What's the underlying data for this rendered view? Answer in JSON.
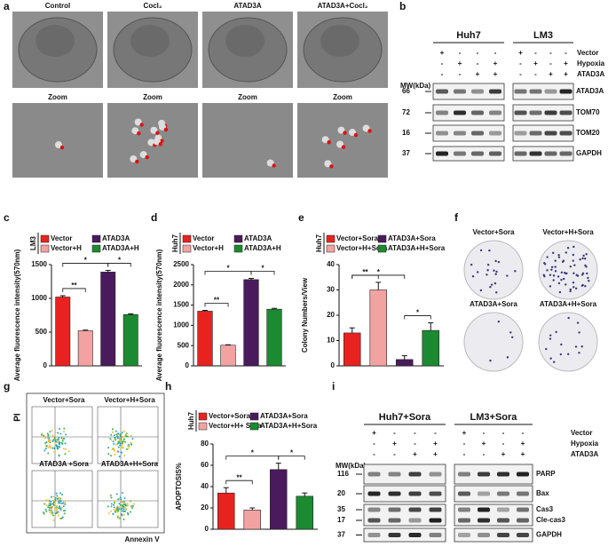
{
  "panel_letters": [
    "a",
    "b",
    "c",
    "d",
    "e",
    "f",
    "g",
    "h",
    "i"
  ],
  "panel_a": {
    "columns": [
      "Control",
      "Cocl₂",
      "ATAD3A",
      "ATAD3A+Cocl₂"
    ],
    "zoom_labels": [
      "Zoom",
      "Zoom",
      "Zoom",
      "Zoom"
    ]
  },
  "panel_b": {
    "cells": [
      "Huh7",
      "LM3"
    ],
    "conditions": [
      {
        "name": "Vector",
        "signs": [
          "+",
          "-",
          "-",
          "-",
          "+",
          "-",
          "-",
          "-"
        ]
      },
      {
        "name": "Hypoxia",
        "signs": [
          "-",
          "+",
          "-",
          "+",
          "-",
          "+",
          "-",
          "+"
        ]
      },
      {
        "name": "ATAD3A",
        "signs": [
          "-",
          "-",
          "+",
          "+",
          "-",
          "-",
          "+",
          "+"
        ]
      }
    ],
    "mw_label": "MW(kDa)",
    "bands": [
      {
        "mw": "66",
        "protein": "ATAD3A"
      },
      {
        "mw": "72",
        "protein": "TOM70"
      },
      {
        "mw": "16",
        "protein": "TOM20"
      },
      {
        "mw": "37",
        "protein": "GAPDH"
      }
    ]
  },
  "panel_f": {
    "plates": [
      "Vector+Sora",
      "Vector+H+Sora",
      "ATAD3A+Sora",
      "ATAD3A+H+Sora"
    ]
  },
  "panel_g": {
    "y_label": "PI",
    "x_label": "Annexin V",
    "plots": [
      "Vector+Sora",
      "Vector+H+Sora",
      "ATAD3A +Sora",
      "ATAD3A+H+Sora"
    ]
  },
  "panel_i": {
    "cells": [
      "Huh7+Sora",
      "LM3+Sora"
    ],
    "conditions": [
      {
        "name": "Vector",
        "signs": [
          "+",
          "-",
          "-",
          "-",
          "+",
          "-",
          "-",
          "-"
        ]
      },
      {
        "name": "Hypoxia",
        "signs": [
          "-",
          "+",
          "-",
          "+",
          "-",
          "+",
          "-",
          "+"
        ]
      },
      {
        "name": "ATAD3A",
        "signs": [
          "-",
          "-",
          "+",
          "+",
          "-",
          "-",
          "+",
          "+"
        ]
      }
    ],
    "mw_label": "MW(kDa)",
    "bands": [
      {
        "mw": [
          "116"
        ],
        "protein": [
          "PARP"
        ]
      },
      {
        "mw": [
          "20"
        ],
        "protein": [
          "Bax"
        ]
      },
      {
        "mw": [
          "35",
          "17"
        ],
        "protein": [
          "Cas3",
          "Cle-cas3"
        ]
      },
      {
        "mw": [
          "37"
        ],
        "protein": [
          "GAPDH"
        ]
      }
    ]
  },
  "chart_data": [
    {
      "type": "bar",
      "cell": "LM3",
      "y_label": "Average fluorescence intensity(570nm)",
      "categories": [
        "Vector",
        "Vector+H",
        "ATAD3A",
        "ATAD3A+H"
      ],
      "colors": [
        "#e8231f",
        "#f3a2a2",
        "#4a1b5c",
        "#1c8a31"
      ],
      "values": [
        1020,
        520,
        1390,
        760
      ],
      "errors": [
        20,
        10,
        25,
        10
      ],
      "ylim": [
        0,
        1500
      ],
      "yticks": [
        0,
        500,
        1000,
        1500
      ],
      "annotations": [
        {
          "label": "**",
          "from": "Vector",
          "to": "Vector+H"
        },
        {
          "label": "*",
          "from": "Vector",
          "to": "ATAD3A"
        },
        {
          "label": "*",
          "from": "ATAD3A",
          "to": "ATAD3A+H"
        }
      ]
    },
    {
      "type": "bar",
      "cell": "Huh7",
      "y_label": "Average fluorescence intensity(570nm)",
      "categories": [
        "Vector",
        "Vector+H",
        "ATAD3A",
        "ATAD3A+H"
      ],
      "colors": [
        "#e8231f",
        "#f3a2a2",
        "#4a1b5c",
        "#1c8a31"
      ],
      "values": [
        1350,
        510,
        2130,
        1400
      ],
      "errors": [
        20,
        10,
        30,
        20
      ],
      "ylim": [
        0,
        2500
      ],
      "yticks": [
        0,
        500,
        1000,
        1500,
        2000,
        2500
      ],
      "annotations": [
        {
          "label": "**",
          "from": "Vector",
          "to": "Vector+H"
        },
        {
          "label": "*",
          "from": "Vector",
          "to": "ATAD3A"
        },
        {
          "label": "*",
          "from": "ATAD3A",
          "to": "ATAD3A+H"
        }
      ]
    },
    {
      "type": "bar",
      "cell": "Huh7",
      "y_label": "Colony Numbers/View",
      "categories": [
        "Vector+Sora",
        "Vector+H+Sora",
        "ATAD3A+Sora",
        "ATAD3A+H+Sora"
      ],
      "colors": [
        "#e8231f",
        "#f3a2a2",
        "#4a1b5c",
        "#1c8a31"
      ],
      "values": [
        13,
        30,
        2.5,
        14
      ],
      "errors": [
        2,
        3,
        1.5,
        3
      ],
      "ylim": [
        0,
        40
      ],
      "yticks": [
        0,
        10,
        20,
        30,
        40
      ],
      "annotations": [
        {
          "label": "**",
          "from": "Vector+Sora",
          "to": "Vector+H+Sora"
        },
        {
          "label": "*",
          "from": "Vector+Sora",
          "to": "ATAD3A+Sora"
        },
        {
          "label": "*",
          "from": "ATAD3A+Sora",
          "to": "ATAD3A+H+Sora"
        }
      ]
    },
    {
      "type": "bar",
      "cell": "Huh7",
      "y_label": "APOPTOSIS%",
      "categories": [
        "Vector+Sora",
        "Vector+H+ Sora",
        "ATAD3A+Sora",
        "ATAD3A+H+Sora"
      ],
      "colors": [
        "#e8231f",
        "#f3a2a2",
        "#4a1b5c",
        "#1c8a31"
      ],
      "values": [
        34,
        18,
        56,
        31
      ],
      "errors": [
        5,
        2,
        6,
        3
      ],
      "ylim": [
        0,
        80
      ],
      "yticks": [
        0,
        20,
        40,
        60,
        80
      ],
      "annotations": [
        {
          "label": "**",
          "from": "Vector+Sora",
          "to": "Vector+H+ Sora"
        },
        {
          "label": "*",
          "from": "Vector+Sora",
          "to": "ATAD3A+Sora"
        },
        {
          "label": "*",
          "from": "ATAD3A+Sora",
          "to": "ATAD3A+H+Sora"
        }
      ]
    }
  ]
}
